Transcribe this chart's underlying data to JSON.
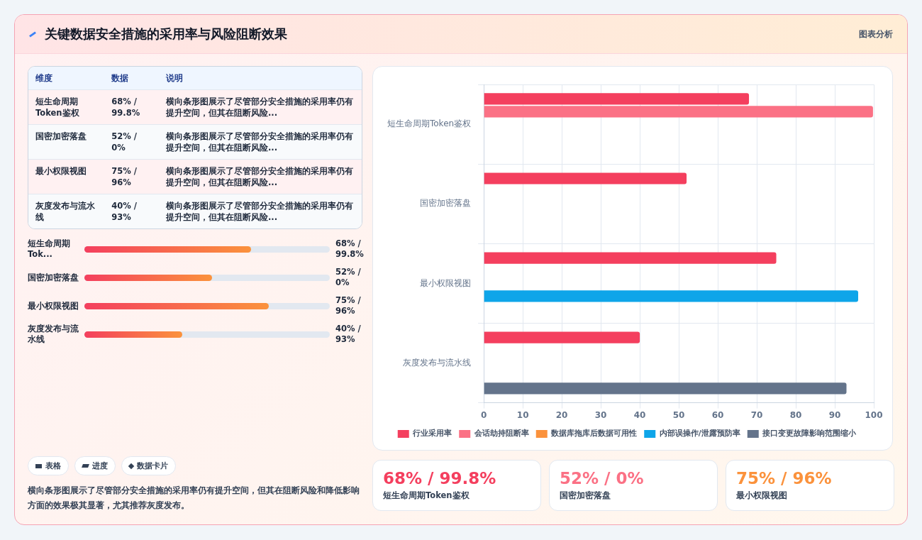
{
  "chart_data": {
    "type": "bar",
    "orientation": "horizontal",
    "title": "关键数据安全措施的采用率与风险阻断效果",
    "categories": [
      "短生命周期Token鉴权",
      "国密加密落盘",
      "最小权限视图",
      "灰度发布与流水线"
    ],
    "series": [
      {
        "name": "行业采用率",
        "color": "#f43f5e",
        "values": [
          68,
          52,
          75,
          40
        ]
      },
      {
        "name": "会话劫持阻断率",
        "color": "#fb7185",
        "values": [
          99.8,
          null,
          null,
          null
        ]
      },
      {
        "name": "数据库拖库后数据可用性",
        "color": "#fb923c",
        "values": [
          null,
          0,
          null,
          null
        ]
      },
      {
        "name": "内部误操作/泄露预防率",
        "color": "#0ea5e9",
        "values": [
          null,
          null,
          96,
          null
        ]
      },
      {
        "name": "接口变更故障影响范围缩小",
        "color": "#64748b",
        "values": [
          null,
          null,
          null,
          93
        ]
      }
    ],
    "xlim": [
      0,
      100
    ],
    "xticks": [
      0,
      10,
      20,
      30,
      40,
      50,
      60,
      70,
      80,
      90,
      100
    ],
    "grid": true,
    "legend": "bottom",
    "annotations": [
      "图表分析",
      "维度",
      "数据",
      "说明",
      "短生命周期Token鉴权",
      "68% / 99.8%",
      "横向条形图展示了尽管部分安全措施的采用率仍有提升空间，但其在阻断风险...",
      "国密加密落盘",
      "52% / 0%",
      "横向条形图展示了尽管部分安全措施的采用率仍有提升空间，但其在阻断风险...",
      "最小权限视图",
      "75% / 96%",
      "横向条形图展示了尽管部分安全措施的采用率仍有提升空间，但其在阻断风险...",
      "灰度发布与流水线",
      "40% / 93%",
      "横向条形图展示了尽管部分安全措施的采用率仍有提升空间，但其在阻断风险...",
      "短生命周期Tok...",
      "68% / 99.8%",
      "国密加密落盘",
      "52% / 0%",
      "最小权限视图",
      "75% / 96%",
      "灰度发布与流水线",
      "40% / 93%",
      "表格",
      "进度",
      "数据卡片",
      "横向条形图展示了尽管部分安全措施的采用率仍有提升空间，但其在阻断风险和降低影响方面的效果极其显著，尤其推荐灰度发布。",
      "68% / 99.8%",
      "短生命周期Token鉴权",
      "52% / 0%",
      "国密加密落盘",
      "75% / 96%",
      "最小权限视图"
    ]
  }
}
